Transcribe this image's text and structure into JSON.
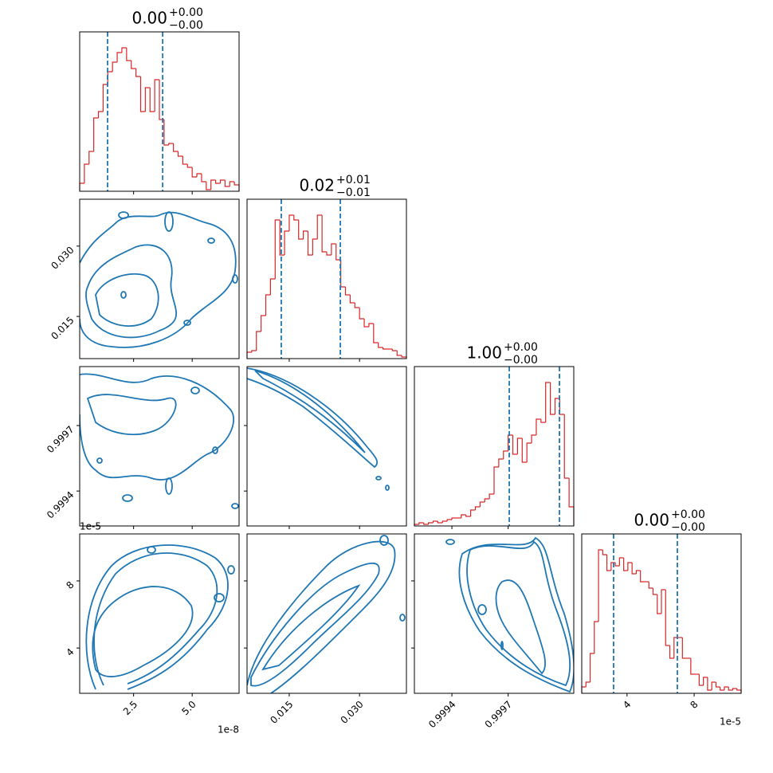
{
  "chart_data": [
    {
      "type": "histogram",
      "title": "0.00",
      "title_upper": "+0.00",
      "title_lower": "−0.00",
      "bins": [
        0.2,
        0.4,
        0.6,
        0.8,
        1.0,
        1.2,
        1.4,
        1.6,
        1.8,
        2.0,
        2.2,
        2.4,
        2.6,
        2.8,
        3.0,
        3.2,
        3.4,
        3.6,
        3.8,
        4.0,
        4.2,
        4.4,
        4.6,
        4.8,
        5.0,
        5.2,
        5.4,
        5.6,
        5.8,
        6.0,
        6.2,
        6.4,
        6.6,
        6.8,
        7.0
      ],
      "counts": [
        5,
        17,
        25,
        46,
        50,
        67,
        75,
        81,
        87,
        90,
        82,
        77,
        72,
        50,
        65,
        50,
        70,
        45,
        29,
        30,
        25,
        22,
        17,
        15,
        9,
        11,
        6,
        1,
        7,
        5,
        7,
        3,
        6,
        4
      ],
      "quantiles": [
        1.39,
        3.74
      ],
      "xlim": [
        0.2,
        7.0
      ],
      "ylim": [
        0,
        100
      ],
      "color": "#d62728",
      "quantile_color": "#1f77b4"
    },
    {
      "type": "contour",
      "xlim": [
        0.2,
        7.0
      ],
      "ylim": [
        0.006,
        0.04
      ],
      "color": "#1f77b4",
      "yticks": [
        0.015,
        {
          "value": 0.03,
          "label": "0.030"
        }
      ]
    },
    {
      "type": "histogram",
      "title": "0.02",
      "title_upper": "+0.01",
      "title_lower": "−0.01",
      "bins": [
        0.006,
        0.007,
        0.008,
        0.009,
        0.01,
        0.011,
        0.012,
        0.013,
        0.014,
        0.015,
        0.016,
        0.017,
        0.018,
        0.019,
        0.02,
        0.021,
        0.022,
        0.023,
        0.024,
        0.025,
        0.026,
        0.027,
        0.028,
        0.029,
        0.03,
        0.031,
        0.032,
        0.033,
        0.034,
        0.035,
        0.036,
        0.037,
        0.038,
        0.039,
        0.04
      ],
      "counts": [
        4,
        5,
        17,
        27,
        40,
        50,
        87,
        65,
        80,
        90,
        87,
        75,
        80,
        65,
        75,
        90,
        67,
        65,
        72,
        62,
        45,
        40,
        35,
        32,
        25,
        20,
        22,
        10,
        7,
        6,
        6,
        5,
        2,
        1
      ],
      "quantiles": [
        0.0133,
        0.0259
      ],
      "xlim": [
        0.006,
        0.04
      ],
      "ylim": [
        0,
        100
      ],
      "color": "#d62728",
      "quantile_color": "#1f77b4"
    },
    {
      "type": "contour",
      "xlim": [
        0.2,
        7.0
      ],
      "ylim": [
        0.99924,
        0.99997
      ],
      "color": "#1f77b4",
      "yticks": [
        0.9994,
        0.9997
      ]
    },
    {
      "type": "contour",
      "xlim": [
        0.006,
        0.04
      ],
      "ylim": [
        0.99924,
        0.99997
      ],
      "color": "#1f77b4"
    },
    {
      "type": "histogram",
      "title": "1.00",
      "title_upper": "+0.00",
      "title_lower": "−0.00",
      "bins": [
        0.9992,
        0.999225,
        0.99925,
        0.999275,
        0.9993,
        0.999325,
        0.99935,
        0.999375,
        0.9994,
        0.999425,
        0.99945,
        0.999475,
        0.9995,
        0.999525,
        0.99955,
        0.999575,
        0.9996,
        0.999625,
        0.99965,
        0.999675,
        0.9997,
        0.999725,
        0.99975,
        0.999775,
        0.9998,
        0.999825,
        0.99985,
        0.999875,
        0.9999,
        0.999925,
        0.99995,
        0.999975,
        1.0,
        1.000025,
        1.00005
      ],
      "counts": [
        1,
        2,
        1,
        2,
        3,
        2,
        3,
        4,
        5,
        5,
        7,
        6,
        10,
        12,
        15,
        17,
        20,
        37,
        42,
        47,
        57,
        45,
        55,
        40,
        52,
        57,
        67,
        65,
        90,
        70,
        80,
        70,
        30,
        12
      ],
      "quantiles": [
        0.999706,
        0.9999735
      ],
      "xlim": [
        0.9992,
        1.00005
      ],
      "ylim": [
        0,
        100
      ],
      "color": "#d62728",
      "quantile_color": "#1f77b4"
    },
    {
      "type": "contour",
      "xlim": [
        0.2,
        7.0
      ],
      "ylim": [
        1.3,
        10.8
      ],
      "color": "#1f77b4",
      "xticks": [
        2.5,
        {
          "value": 5,
          "label": "5.0"
        }
      ],
      "yticks": [
        4,
        8
      ],
      "x_offset_label": "1e-8",
      "y_offset_label": "1e-5"
    },
    {
      "type": "contour",
      "xlim": [
        0.006,
        0.04
      ],
      "ylim": [
        1.3,
        10.8
      ],
      "color": "#1f77b4",
      "xticks": [
        0.015,
        {
          "value": 0.03,
          "label": "0.030"
        }
      ]
    },
    {
      "type": "contour",
      "xlim": [
        0.9992,
        1.00005
      ],
      "ylim": [
        1.3,
        10.8
      ],
      "color": "#1f77b4",
      "xticks": [
        0.9994,
        0.9997
      ]
    },
    {
      "type": "histogram",
      "title": "0.00",
      "title_upper": "+0.00",
      "title_lower": "−0.00",
      "bins": [
        1.3,
        1.55,
        1.8,
        2.05,
        2.3,
        2.55,
        2.8,
        3.05,
        3.3,
        3.55,
        3.8,
        4.05,
        4.3,
        4.55,
        4.8,
        5.05,
        5.3,
        5.55,
        5.8,
        6.05,
        6.3,
        6.55,
        6.8,
        7.05,
        7.3,
        7.55,
        7.8,
        8.05,
        8.3,
        8.55,
        8.8,
        9.05,
        9.3,
        9.55,
        9.8,
        10.05,
        10.3,
        10.55,
        10.8
      ],
      "counts": [
        4,
        7,
        25,
        45,
        90,
        87,
        77,
        82,
        80,
        85,
        77,
        82,
        75,
        77,
        70,
        70,
        66,
        62,
        50,
        65,
        30,
        22,
        35,
        35,
        22,
        22,
        12,
        12,
        5,
        10,
        2,
        7,
        4,
        2,
        4,
        2,
        3,
        2
      ],
      "quantiles": [
        3.2,
        7.0
      ],
      "xlim": [
        1.3,
        10.8
      ],
      "ylim": [
        0,
        100
      ],
      "color": "#d62728",
      "quantile_color": "#1f77b4",
      "xticks": [
        4,
        8
      ],
      "x_offset_label": "1e-5"
    }
  ]
}
